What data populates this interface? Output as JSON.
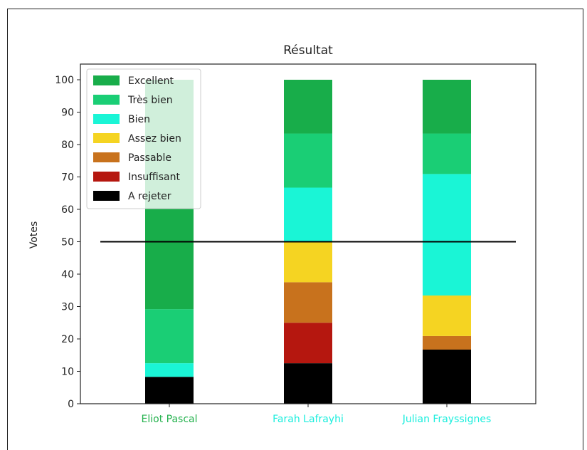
{
  "chart_data": {
    "type": "bar",
    "stacked": true,
    "title": "Résultat",
    "xlabel": "",
    "ylabel": "Votes",
    "ylim": [
      0,
      100
    ],
    "yticks": [
      0,
      10,
      20,
      30,
      40,
      50,
      60,
      70,
      80,
      90,
      100
    ],
    "categories": [
      "Eliot Pascal",
      "Farah Lafrayhi",
      "Julian Frayssignes"
    ],
    "category_colors": [
      "#22b14c",
      "#1aeedd",
      "#1aeedd"
    ],
    "reference_line": {
      "y": 50,
      "color": "#000000"
    },
    "legend_position": "upper-left",
    "series": [
      {
        "name": "A rejeter",
        "color": "#000000",
        "values": [
          8.3,
          12.5,
          16.7
        ]
      },
      {
        "name": "Insuffisant",
        "color": "#b5170f",
        "values": [
          0,
          12.5,
          0
        ]
      },
      {
        "name": "Passable",
        "color": "#c8721d",
        "values": [
          0,
          12.5,
          4.2
        ]
      },
      {
        "name": "Assez bien",
        "color": "#f5d422",
        "values": [
          0,
          12.5,
          12.5
        ]
      },
      {
        "name": "Bien",
        "color": "#1af5d6",
        "values": [
          4.2,
          16.7,
          37.5
        ]
      },
      {
        "name": "Très bien",
        "color": "#1ace75",
        "values": [
          16.7,
          16.7,
          12.5
        ]
      },
      {
        "name": "Excellent",
        "color": "#18ad4a",
        "values": [
          70.8,
          16.6,
          16.6
        ]
      }
    ]
  }
}
